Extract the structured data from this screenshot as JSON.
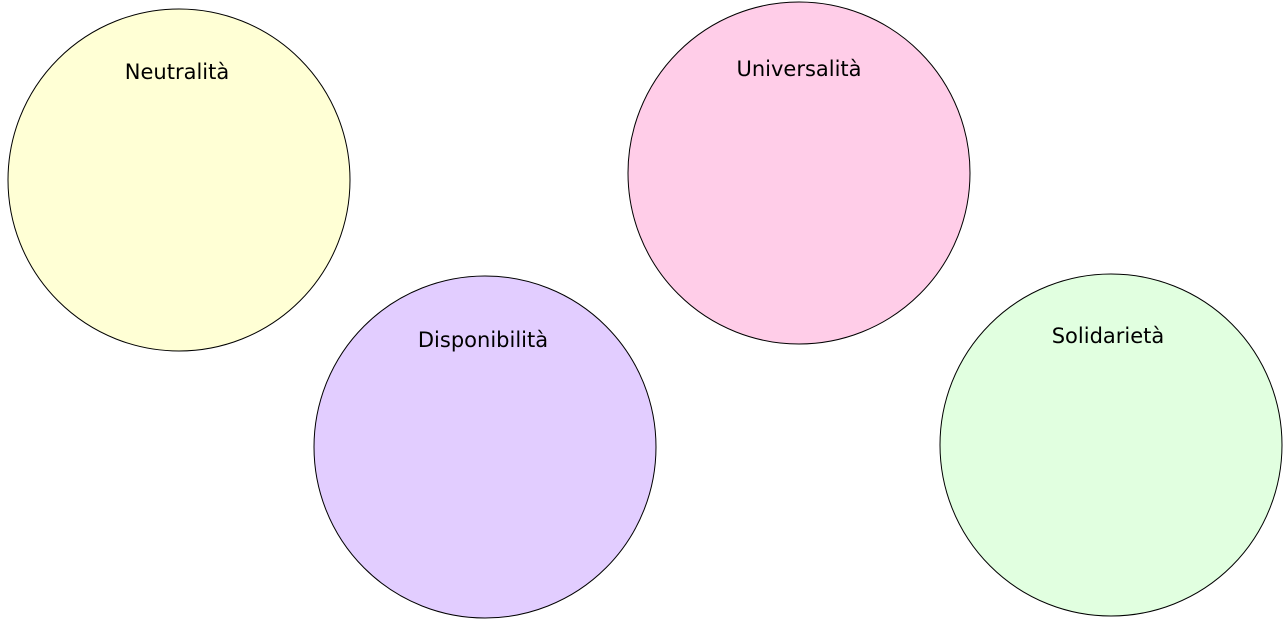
{
  "nodes": [
    {
      "label": "Neutralità"
    },
    {
      "label": "Disponibilità"
    },
    {
      "label": "Universalità"
    },
    {
      "label": "Solidarietà"
    }
  ]
}
